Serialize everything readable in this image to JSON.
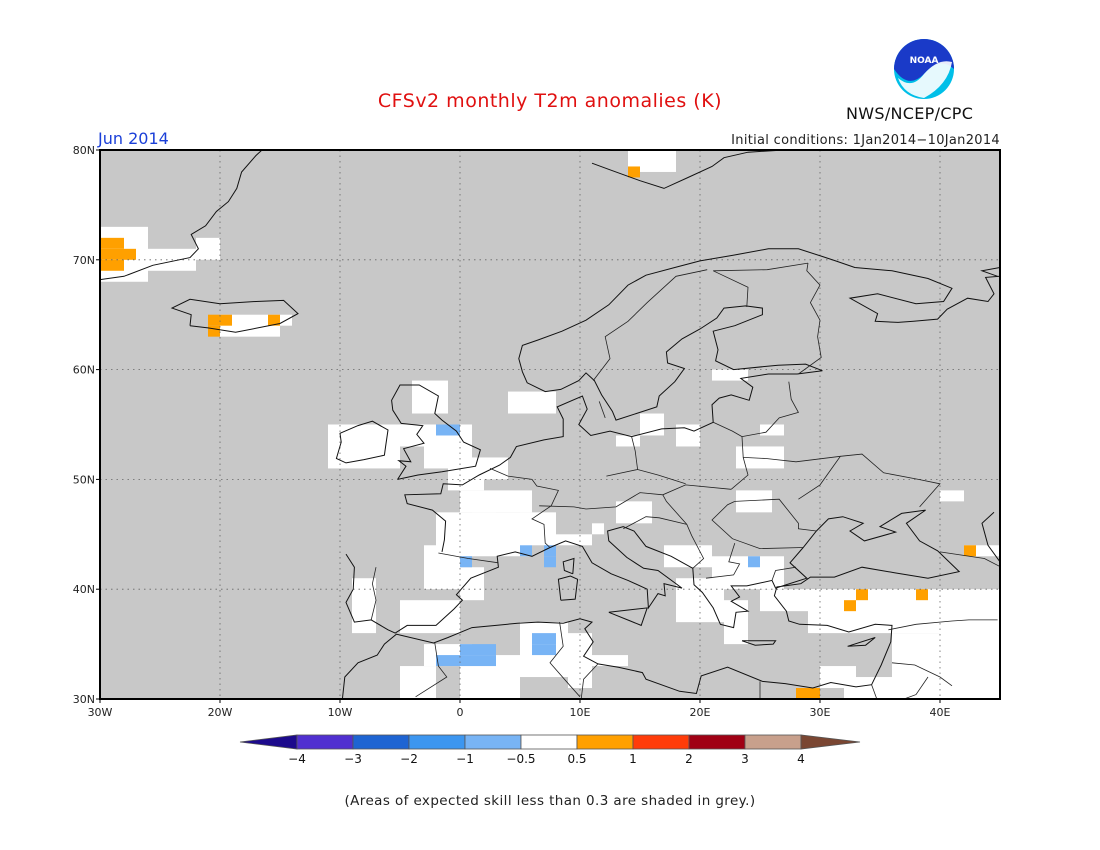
{
  "title": "CFSv2 monthly T2m anomalies (K)",
  "agency": "NWS/NCEP/CPC",
  "logo_text": "NOAA",
  "valid_month": "Jun 2014",
  "initial_conditions": "Initial conditions: 1Jan2014−10Jan2014",
  "footnote": "(Areas of expected skill less than 0.3 are shaded in grey.)",
  "map": {
    "lon_range": [
      -30,
      45
    ],
    "lat_range": [
      30,
      80
    ],
    "lat_ticks": [
      {
        "v": 80,
        "t": "80N"
      },
      {
        "v": 70,
        "t": "70N"
      },
      {
        "v": 60,
        "t": "60N"
      },
      {
        "v": 50,
        "t": "50N"
      },
      {
        "v": 40,
        "t": "40N"
      },
      {
        "v": 30,
        "t": "30N"
      }
    ],
    "lon_ticks": [
      {
        "v": -30,
        "t": "30W"
      },
      {
        "v": -20,
        "t": "20W"
      },
      {
        "v": -10,
        "t": "10W"
      },
      {
        "v": 0,
        "t": "0"
      },
      {
        "v": 10,
        "t": "10E"
      },
      {
        "v": 20,
        "t": "20E"
      },
      {
        "v": 30,
        "t": "30E"
      },
      {
        "v": 40,
        "t": "40E"
      }
    ],
    "skill_mask_color": "#c8c8c8",
    "background_color": "#ffffff"
  },
  "colorbar": {
    "colors": [
      "#1c0a8c",
      "#5030d0",
      "#1e64d2",
      "#3c96f0",
      "#78b4f5",
      "#ffffff",
      "#ffa000",
      "#ff3c0a",
      "#a00014",
      "#c8a08c",
      "#7a4632"
    ],
    "labels": [
      "−4",
      "−3",
      "−2",
      "−1",
      "−0.5",
      "0.5",
      "1",
      "2",
      "3",
      "4"
    ]
  },
  "chart_data": {
    "type": "heatmap",
    "title": "CFSv2 monthly T2m anomalies (K)",
    "valid": "Jun 2014",
    "initial_conditions": "1Jan2014−10Jan2014",
    "units": "K",
    "xlim": [
      -30,
      45
    ],
    "ylim": [
      30,
      80
    ],
    "levels": [
      -4,
      -3,
      -2,
      -1,
      -0.5,
      0.5,
      1,
      2,
      3,
      4
    ],
    "anomaly_cells": [
      {
        "lon": -29.5,
        "lat": 71.5,
        "value": 0.7
      },
      {
        "lon": -28.5,
        "lat": 71.5,
        "value": 0.7
      },
      {
        "lon": -29.5,
        "lat": 70.5,
        "value": 0.7
      },
      {
        "lon": -28.5,
        "lat": 70.5,
        "value": 0.7
      },
      {
        "lon": -27.5,
        "lat": 70.5,
        "value": 0.7
      },
      {
        "lon": -29.5,
        "lat": 69.5,
        "value": 0.7
      },
      {
        "lon": -28.5,
        "lat": 69.5,
        "value": 0.7
      },
      {
        "lon": -20.5,
        "lat": 64.5,
        "value": 0.7
      },
      {
        "lon": -19.5,
        "lat": 64.5,
        "value": 0.7
      },
      {
        "lon": -20.5,
        "lat": 63.5,
        "value": 0.7
      },
      {
        "lon": -15.5,
        "lat": 64.5,
        "value": 0.7
      },
      {
        "lon": 14.5,
        "lat": 78.0,
        "value": 0.7
      },
      {
        "lon": -1.5,
        "lat": 54.5,
        "value": -0.7
      },
      {
        "lon": -0.5,
        "lat": 54.5,
        "value": -0.7
      },
      {
        "lon": 0.5,
        "lat": 42.5,
        "value": -0.7
      },
      {
        "lon": 5.5,
        "lat": 43.5,
        "value": -0.7
      },
      {
        "lon": 7.5,
        "lat": 43.5,
        "value": -0.7
      },
      {
        "lon": 7.5,
        "lat": 42.5,
        "value": -0.7
      },
      {
        "lon": 24.5,
        "lat": 42.5,
        "value": -0.7
      },
      {
        "lon": -1.5,
        "lat": 33.5,
        "value": -0.7
      },
      {
        "lon": -0.5,
        "lat": 33.5,
        "value": -0.7
      },
      {
        "lon": 0.5,
        "lat": 33.5,
        "value": -0.7
      },
      {
        "lon": 1.5,
        "lat": 33.5,
        "value": -0.7
      },
      {
        "lon": 1.5,
        "lat": 34.5,
        "value": -0.7
      },
      {
        "lon": 2.5,
        "lat": 34.5,
        "value": -0.7
      },
      {
        "lon": 0.5,
        "lat": 34.5,
        "value": -0.7
      },
      {
        "lon": 2.5,
        "lat": 33.5,
        "value": -0.7
      },
      {
        "lon": 6.5,
        "lat": 35.5,
        "value": -0.7
      },
      {
        "lon": 7.5,
        "lat": 35.5,
        "value": -0.7
      },
      {
        "lon": 6.5,
        "lat": 34.5,
        "value": -0.7
      },
      {
        "lon": 7.5,
        "lat": 34.5,
        "value": -0.7
      },
      {
        "lon": 32.5,
        "lat": 38.5,
        "value": 0.7
      },
      {
        "lon": 33.5,
        "lat": 39.5,
        "value": 0.7
      },
      {
        "lon": 38.5,
        "lat": 39.5,
        "value": 0.7
      },
      {
        "lon": 42.5,
        "lat": 43.5,
        "value": 0.7
      },
      {
        "lon": 28.5,
        "lat": 30.5,
        "value": 0.7
      },
      {
        "lon": 29.5,
        "lat": 30.5,
        "value": 0.7
      }
    ]
  }
}
